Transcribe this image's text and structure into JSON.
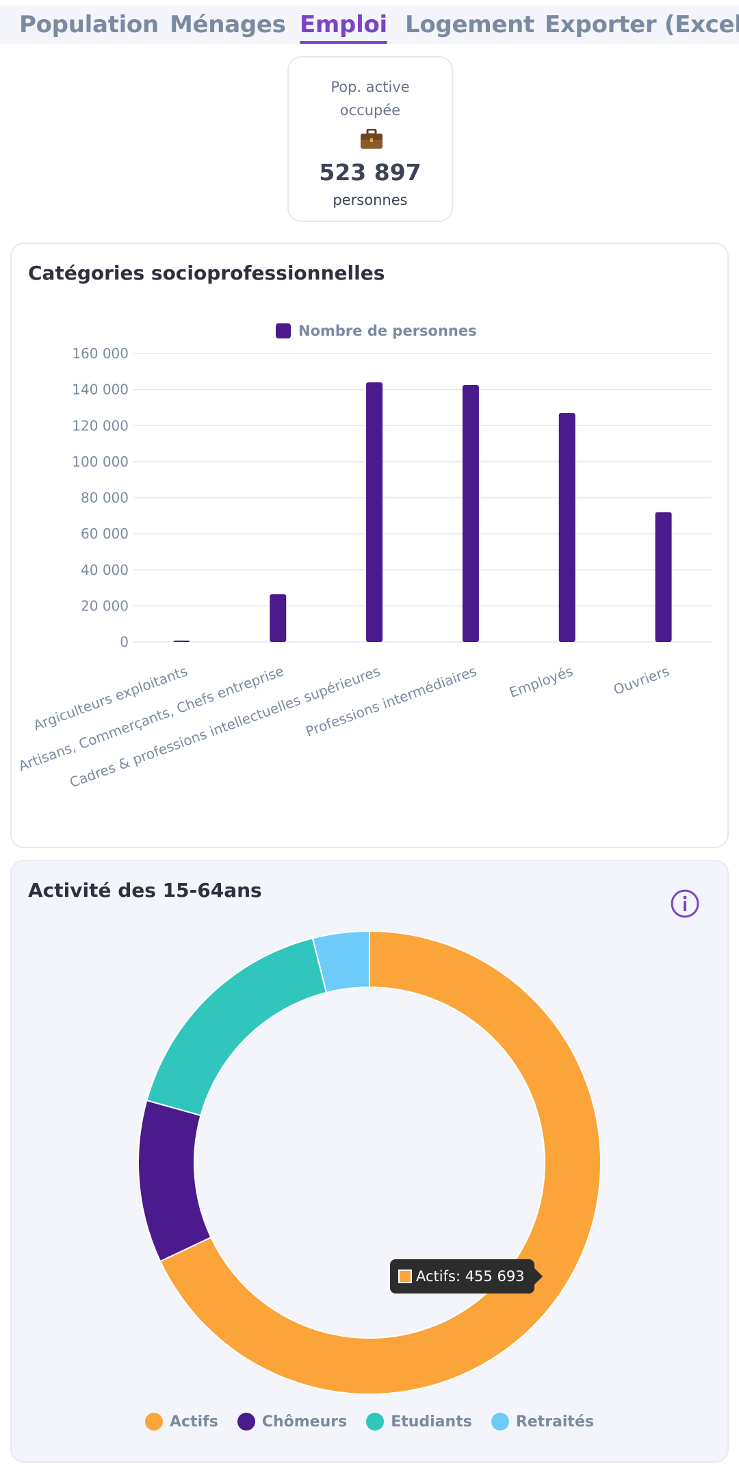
{
  "tabs": [
    {
      "label": "Population"
    },
    {
      "label": "Ménages"
    },
    {
      "label": "Emploi"
    },
    {
      "label": "Logement"
    },
    {
      "label": "Exporter (Excel)"
    }
  ],
  "kpi": {
    "label_line1": "Pop. active",
    "label_line2": "occupée",
    "icon": "briefcase-icon",
    "value": "523 897",
    "unit": "personnes"
  },
  "bar_card": {
    "title": "Catégories socioprofessionnelles"
  },
  "donut_card": {
    "title": "Activité des 15-64ans"
  },
  "tooltip": {
    "label": "Actifs: 455 693"
  },
  "colors": {
    "accent": "#7a45c4",
    "bar": "#4b1a8c",
    "actifs": "#fba43a",
    "chomeurs": "#4b1a8c",
    "etudiants": "#31c6bd",
    "retraites": "#6ecbf9"
  },
  "chart_data": [
    {
      "type": "bar",
      "title": "Catégories socioprofessionnelles",
      "categories": [
        "Argiculteurs exploitants",
        "Artisans, Commerçants, Chefs entreprise",
        "Cadres & professions intellectuelles supérieures",
        "Professions intermédiaires",
        "Employés",
        "Ouvriers"
      ],
      "series": [
        {
          "name": "Nombre de personnes",
          "values": [
            600,
            26500,
            144000,
            142500,
            127000,
            72000
          ]
        }
      ],
      "ylim": [
        0,
        160000
      ],
      "yticks": [
        "160 000",
        "140 000",
        "120 000",
        "100 000",
        "80 000",
        "60 000",
        "40 000",
        "20 000",
        "0"
      ],
      "legend": "top-center",
      "grid": true
    },
    {
      "type": "pie",
      "title": "Activité des 15-64ans",
      "labels": [
        "Actifs",
        "Chômeurs",
        "Etudiants",
        "Retraités"
      ],
      "values": [
        455693,
        76000,
        112000,
        26500
      ],
      "legend": "bottom-center"
    }
  ]
}
